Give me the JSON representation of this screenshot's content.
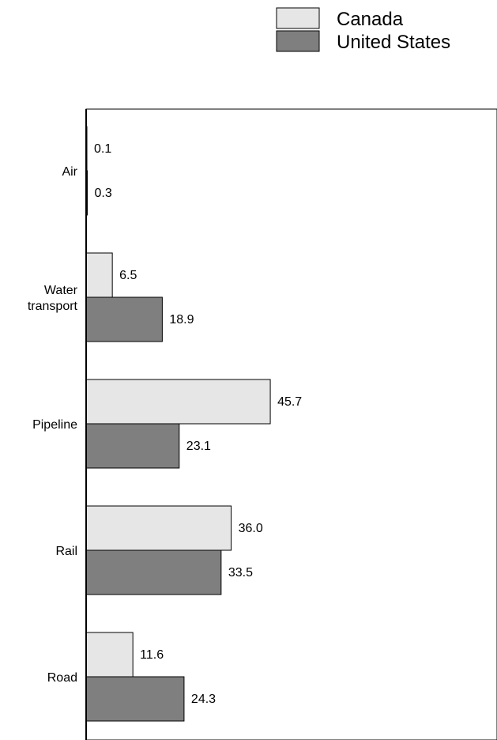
{
  "chart_data": {
    "type": "bar",
    "orientation": "horizontal",
    "categories": [
      "Air",
      "Water\ntransport",
      "Pipeline",
      "Rail",
      "Road"
    ],
    "series": [
      {
        "name": "Canada",
        "values": [
          0.1,
          6.5,
          45.7,
          36.0,
          11.6
        ],
        "labels": [
          "0.1",
          "6.5",
          "45.7",
          "36.0",
          "11.6"
        ],
        "color": "#e6e6e6"
      },
      {
        "name": "United States",
        "values": [
          0.3,
          18.9,
          23.1,
          33.5,
          24.3
        ],
        "labels": [
          "0.3",
          "18.9",
          "23.1",
          "33.5",
          "24.3"
        ],
        "color": "#7f7f7f"
      }
    ],
    "xlim": [
      0,
      100
    ],
    "grid": false,
    "legend": "top-right"
  }
}
